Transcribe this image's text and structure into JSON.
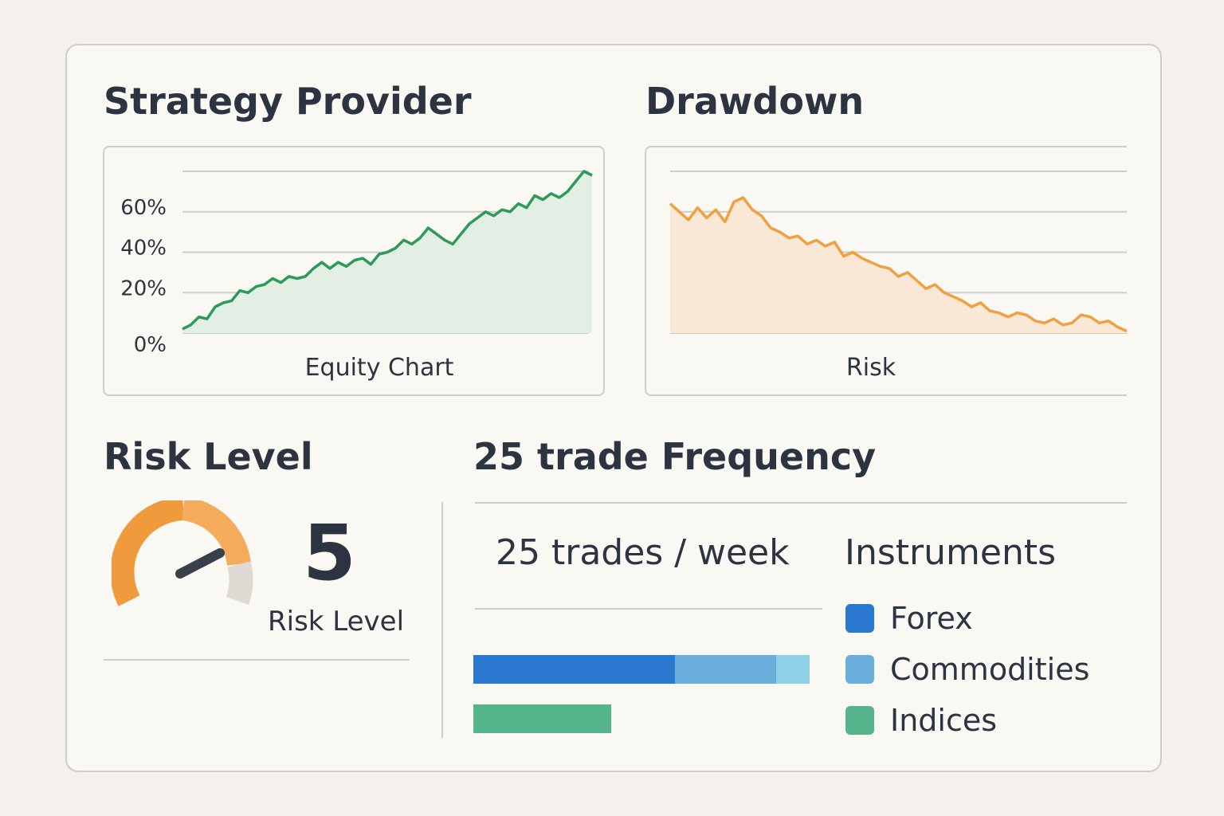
{
  "strategy": {
    "title": "Strategy Provider",
    "caption": "Equity Chart"
  },
  "drawdown": {
    "title": "Drawdown",
    "caption": "Risk"
  },
  "risk": {
    "title": "Risk Level",
    "value": "5",
    "label": "Risk Level",
    "gauge_fraction": 0.72
  },
  "frequency": {
    "title": "25 trade Frequency",
    "rate": "25 trades / week",
    "instruments_title": "Instruments",
    "legend": [
      {
        "label": "Forex",
        "color": "#2a78d0"
      },
      {
        "label": "Commodities",
        "color": "#6aaedc"
      },
      {
        "label": "Indices",
        "color": "#55b48c"
      }
    ],
    "bars": {
      "row1": [
        {
          "share": 0.6,
          "color": "#2a78d0"
        },
        {
          "share": 0.3,
          "color": "#6aaedc"
        },
        {
          "share": 0.1,
          "color": "#8fd0e6"
        }
      ],
      "row2": [
        {
          "share": 0.41,
          "color": "#55b48c"
        }
      ]
    }
  },
  "chart_data": [
    {
      "type": "area",
      "title": "Strategy Provider",
      "xlabel": "Equity Chart",
      "ylabel": "",
      "yticks": [
        "0%",
        "20%",
        "40%",
        "60%"
      ],
      "ylim": [
        0,
        80
      ],
      "color": "#2e9a5a",
      "fill": "#e3efe4",
      "grid": true,
      "x": [
        0,
        1,
        2,
        3,
        4,
        5,
        6,
        7,
        8,
        9,
        10,
        11,
        12,
        13,
        14,
        15,
        16,
        17,
        18,
        19,
        20,
        21,
        22,
        23,
        24,
        25,
        26,
        27,
        28,
        29,
        30,
        31,
        32,
        33,
        34,
        35,
        36,
        37,
        38,
        39,
        40,
        41,
        42,
        43,
        44,
        45,
        46,
        47,
        48,
        49,
        50
      ],
      "values": [
        2,
        4,
        8,
        7,
        13,
        15,
        16,
        21,
        20,
        23,
        24,
        27,
        25,
        28,
        27,
        28,
        32,
        35,
        32,
        35,
        33,
        36,
        37,
        34,
        39,
        40,
        42,
        46,
        44,
        47,
        52,
        49,
        46,
        44,
        49,
        54,
        57,
        60,
        58,
        61,
        60,
        64,
        62,
        68,
        66,
        69,
        67,
        70,
        75,
        80,
        78
      ]
    },
    {
      "type": "area",
      "title": "Drawdown",
      "xlabel": "Risk",
      "ylabel": "",
      "color": "#f0a040",
      "fill": "#f9e8d6",
      "grid": true,
      "ylim": [
        0,
        80
      ],
      "x": [
        0,
        1,
        2,
        3,
        4,
        5,
        6,
        7,
        8,
        9,
        10,
        11,
        12,
        13,
        14,
        15,
        16,
        17,
        18,
        19,
        20,
        21,
        22,
        23,
        24,
        25,
        26,
        27,
        28,
        29,
        30,
        31,
        32,
        33,
        34,
        35,
        36,
        37,
        38,
        39,
        40,
        41,
        42,
        43,
        44,
        45,
        46,
        47,
        48,
        49,
        50
      ],
      "values": [
        64,
        60,
        56,
        62,
        57,
        61,
        55,
        65,
        67,
        61,
        58,
        52,
        50,
        47,
        48,
        44,
        46,
        43,
        45,
        38,
        40,
        37,
        35,
        33,
        32,
        28,
        30,
        26,
        22,
        24,
        20,
        18,
        16,
        13,
        15,
        11,
        10,
        8,
        10,
        9,
        6,
        5,
        7,
        4,
        5,
        9,
        8,
        5,
        6,
        3,
        1
      ]
    }
  ]
}
